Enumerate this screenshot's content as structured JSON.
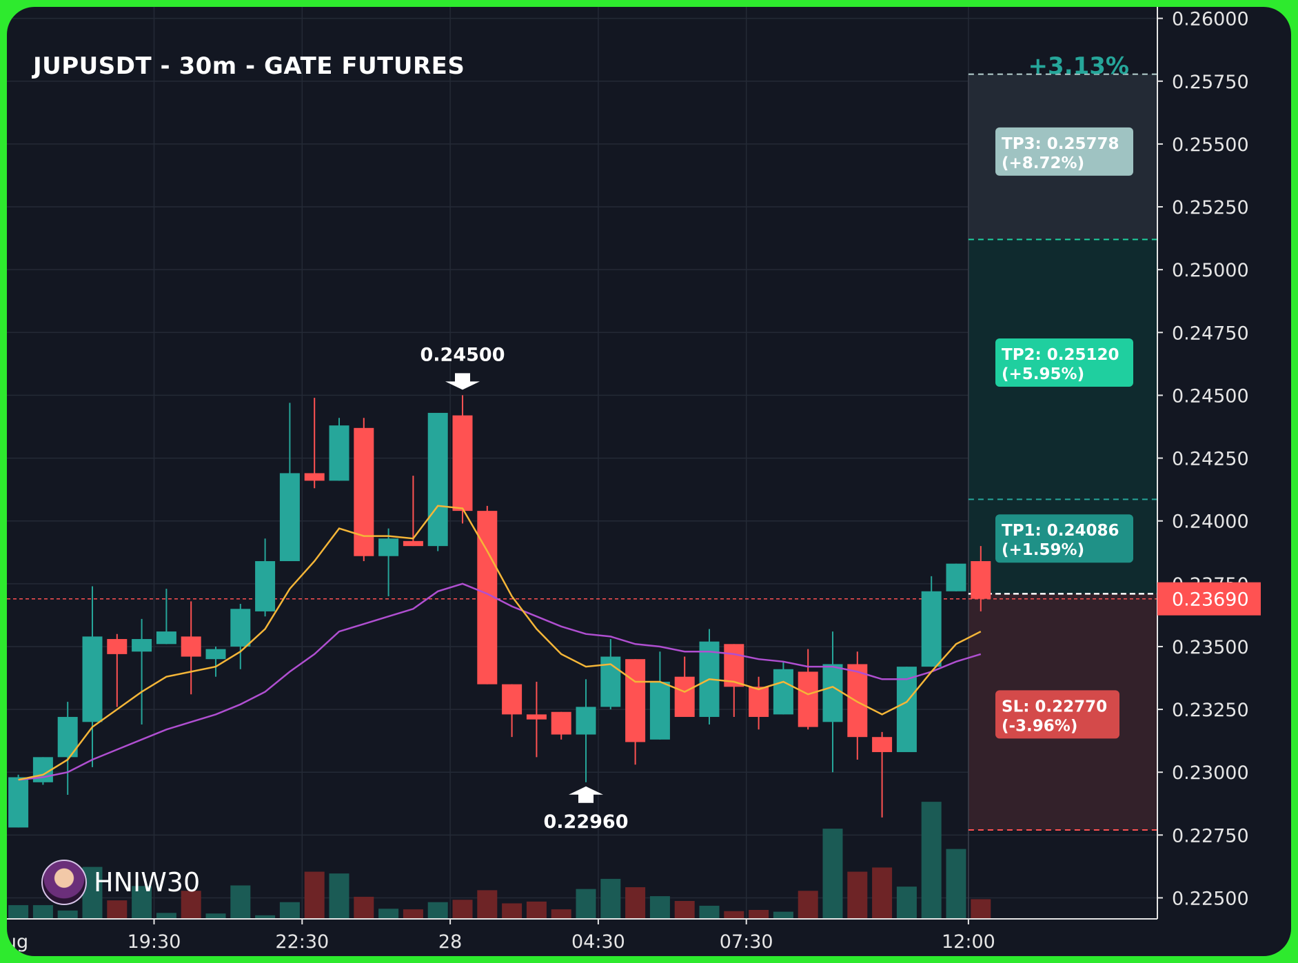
{
  "header": {
    "title": "JUPUSDT - 30m - GATE FUTURES",
    "change_pct": "+3.13%"
  },
  "watermark": {
    "username": "HNIW30",
    "avatar_icon": "user-avatar-icon"
  },
  "colors": {
    "background": "#131722",
    "up": "#26a69a",
    "down": "#ff5252",
    "ma_fast": "#f5b638",
    "ma_slow": "#b04fd1",
    "tp_zone": "#0f2a2e",
    "sl_zone": "#33212a",
    "tp3_label": "#9fc3c2",
    "tp2_label": "#1fcf9f",
    "tp1_label": "#1f9187",
    "sl_label": "#d44a4a"
  },
  "chart_data": {
    "type": "candlestick",
    "ylim": [
      0.2243,
      0.2601
    ],
    "y_ticks": [
      "0.26000",
      "0.25750",
      "0.25500",
      "0.25250",
      "0.25000",
      "0.24750",
      "0.24500",
      "0.24250",
      "0.24000",
      "0.23750",
      "0.23500",
      "0.23250",
      "0.23000",
      "0.22750",
      "0.22500"
    ],
    "x_ticks": [
      {
        "label": "ug",
        "index": -0.55
      },
      {
        "label": "19:30",
        "index": 5.5
      },
      {
        "label": "22:30",
        "index": 11.5
      },
      {
        "label": "28",
        "index": 17.5
      },
      {
        "label": "04:30",
        "index": 23.5
      },
      {
        "label": "07:30",
        "index": 29.5
      },
      {
        "label": "12:00",
        "index": 38.5
      }
    ],
    "candles": [
      {
        "o": 0.2278,
        "h": 0.2299,
        "l": 0.2278,
        "c": 0.2298
      },
      {
        "o": 0.2296,
        "h": 0.2306,
        "l": 0.2295,
        "c": 0.2306
      },
      {
        "o": 0.2306,
        "h": 0.2328,
        "l": 0.2291,
        "c": 0.2322
      },
      {
        "o": 0.232,
        "h": 0.2374,
        "l": 0.2302,
        "c": 0.2354
      },
      {
        "o": 0.2353,
        "h": 0.2355,
        "l": 0.2326,
        "c": 0.2347
      },
      {
        "o": 0.2348,
        "h": 0.2361,
        "l": 0.2319,
        "c": 0.2353
      },
      {
        "o": 0.2351,
        "h": 0.2373,
        "l": 0.2351,
        "c": 0.2356
      },
      {
        "o": 0.2354,
        "h": 0.2368,
        "l": 0.2331,
        "c": 0.2346
      },
      {
        "o": 0.2345,
        "h": 0.235,
        "l": 0.2338,
        "c": 0.2349
      },
      {
        "o": 0.235,
        "h": 0.2367,
        "l": 0.2341,
        "c": 0.2365
      },
      {
        "o": 0.2364,
        "h": 0.2393,
        "l": 0.2362,
        "c": 0.2384
      },
      {
        "o": 0.2384,
        "h": 0.2447,
        "l": 0.2384,
        "c": 0.2419
      },
      {
        "o": 0.2419,
        "h": 0.2449,
        "l": 0.2413,
        "c": 0.2416
      },
      {
        "o": 0.2416,
        "h": 0.2441,
        "l": 0.2416,
        "c": 0.2438
      },
      {
        "o": 0.2437,
        "h": 0.2441,
        "l": 0.2384,
        "c": 0.2386
      },
      {
        "o": 0.2386,
        "h": 0.2397,
        "l": 0.237,
        "c": 0.2393
      },
      {
        "o": 0.2392,
        "h": 0.2418,
        "l": 0.239,
        "c": 0.239
      },
      {
        "o": 0.239,
        "h": 0.2443,
        "l": 0.2388,
        "c": 0.2443
      },
      {
        "o": 0.2442,
        "h": 0.245,
        "l": 0.2399,
        "c": 0.2404
      },
      {
        "o": 0.2404,
        "h": 0.2406,
        "l": 0.2335,
        "c": 0.2335
      },
      {
        "o": 0.2335,
        "h": 0.2335,
        "l": 0.2314,
        "c": 0.2323
      },
      {
        "o": 0.2323,
        "h": 0.2336,
        "l": 0.2306,
        "c": 0.2321
      },
      {
        "o": 0.2324,
        "h": 0.2324,
        "l": 0.2313,
        "c": 0.2315
      },
      {
        "o": 0.2315,
        "h": 0.2337,
        "l": 0.2296,
        "c": 0.2326
      },
      {
        "o": 0.2326,
        "h": 0.2353,
        "l": 0.2325,
        "c": 0.2346
      },
      {
        "o": 0.2345,
        "h": 0.2345,
        "l": 0.2303,
        "c": 0.2312
      },
      {
        "o": 0.2313,
        "h": 0.2348,
        "l": 0.2313,
        "c": 0.2336
      },
      {
        "o": 0.2338,
        "h": 0.2346,
        "l": 0.2322,
        "c": 0.2322
      },
      {
        "o": 0.2322,
        "h": 0.2357,
        "l": 0.2319,
        "c": 0.2352
      },
      {
        "o": 0.2351,
        "h": 0.2351,
        "l": 0.2322,
        "c": 0.2334
      },
      {
        "o": 0.2334,
        "h": 0.2338,
        "l": 0.2317,
        "c": 0.2322
      },
      {
        "o": 0.2323,
        "h": 0.2344,
        "l": 0.2323,
        "c": 0.2341
      },
      {
        "o": 0.234,
        "h": 0.2349,
        "l": 0.2317,
        "c": 0.2318
      },
      {
        "o": 0.232,
        "h": 0.2356,
        "l": 0.23,
        "c": 0.2343
      },
      {
        "o": 0.2343,
        "h": 0.2348,
        "l": 0.2305,
        "c": 0.2314
      },
      {
        "o": 0.2314,
        "h": 0.2316,
        "l": 0.2282,
        "c": 0.2308
      },
      {
        "o": 0.2308,
        "h": 0.2342,
        "l": 0.2308,
        "c": 0.2342
      },
      {
        "o": 0.2342,
        "h": 0.2378,
        "l": 0.2342,
        "c": 0.2372
      },
      {
        "o": 0.2372,
        "h": 0.2383,
        "l": 0.2372,
        "c": 0.2383
      },
      {
        "o": 0.2384,
        "h": 0.239,
        "l": 0.2364,
        "c": 0.2369
      }
    ],
    "volume_max": 30000,
    "volumes": [
      2300,
      2300,
      1400,
      8700,
      3100,
      5500,
      1000,
      4700,
      900,
      5600,
      600,
      2800,
      7900,
      7600,
      3700,
      1700,
      1600,
      2800,
      3200,
      4800,
      2600,
      2900,
      1600,
      5000,
      6700,
      5300,
      3800,
      3000,
      2200,
      1300,
      1500,
      1200,
      4700,
      15100,
      7900,
      8600,
      5400,
      19600,
      11700,
      3300
    ],
    "ma_fast": [
      0.2297,
      0.2299,
      0.2305,
      0.2318,
      0.2325,
      0.2332,
      0.2338,
      0.234,
      0.2342,
      0.2348,
      0.2357,
      0.2373,
      0.2384,
      0.2397,
      0.2394,
      0.2394,
      0.2393,
      0.2406,
      0.2405,
      0.2388,
      0.237,
      0.2357,
      0.2347,
      0.2342,
      0.2343,
      0.2336,
      0.2336,
      0.2332,
      0.2337,
      0.2336,
      0.2333,
      0.2336,
      0.2331,
      0.2334,
      0.2328,
      0.2323,
      0.2328,
      0.234,
      0.2351,
      0.2356
    ],
    "ma_slow": [
      0.2297,
      0.2298,
      0.23,
      0.2305,
      0.2309,
      0.2313,
      0.2317,
      0.232,
      0.2323,
      0.2327,
      0.2332,
      0.234,
      0.2347,
      0.2356,
      0.2359,
      0.2362,
      0.2365,
      0.2372,
      0.2375,
      0.2371,
      0.2366,
      0.2362,
      0.2358,
      0.2355,
      0.2354,
      0.2351,
      0.235,
      0.2348,
      0.2348,
      0.2347,
      0.2345,
      0.2344,
      0.2342,
      0.2342,
      0.234,
      0.2337,
      0.2337,
      0.234,
      0.2344,
      0.2347
    ],
    "current_price": {
      "value": 0.2369,
      "label": "0.23690"
    },
    "annotations": [
      {
        "label": "0.24500",
        "value": 0.245,
        "index": 18,
        "direction": "down"
      },
      {
        "label": "0.22960",
        "value": 0.2296,
        "index": 23,
        "direction": "up"
      }
    ],
    "trade_levels": {
      "entry": 0.2371,
      "top": 0.25778,
      "zone_split": 0.2512,
      "tp1": 0.24086,
      "sl": 0.2277,
      "labels": [
        {
          "text1": "TP3: 0.25778",
          "text2": "(+8.72%)",
          "value": 0.2547,
          "color_key": "tp3_label",
          "width": 200
        },
        {
          "text1": "TP2: 0.25120",
          "text2": "(+5.95%)",
          "value": 0.2463,
          "color_key": "tp2_label",
          "width": 200
        },
        {
          "text1": "TP1: 0.24086",
          "text2": "(+1.59%)",
          "value": 0.2393,
          "color_key": "tp1_label",
          "width": 200
        },
        {
          "text1": "SL: 0.22770",
          "text2": "(-3.96%)",
          "value": 0.2323,
          "color_key": "sl_label",
          "width": 180
        }
      ]
    }
  }
}
